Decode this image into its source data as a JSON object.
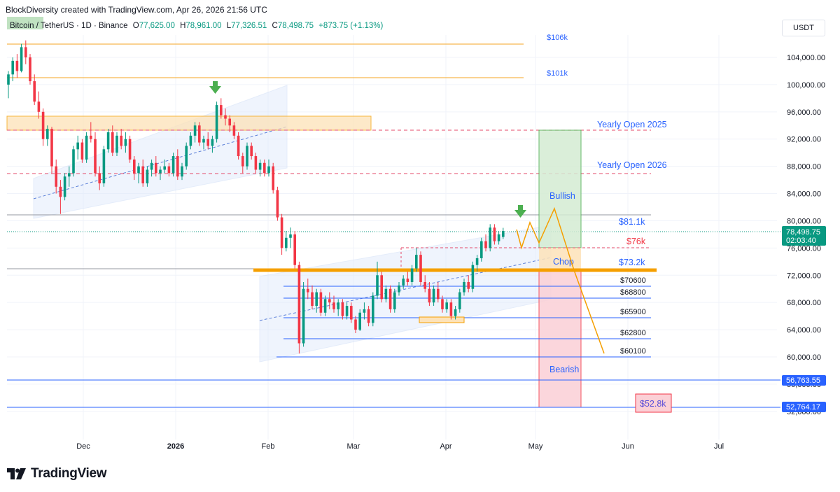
{
  "header": {
    "credit": "BlockDiversity created with TradingView.com, Apr 26, 2026 21:56 UTC",
    "symbol": "Bitcoin / TetherUS · 1D · Binance",
    "open_label": "O",
    "open": "77,625.00",
    "high_label": "H",
    "high": "78,961.00",
    "low_label": "L",
    "low": "77,326.51",
    "close_label": "C",
    "close": "78,498.75",
    "change": "+873.75 (+1.13%)",
    "currency": "USDT"
  },
  "footer": {
    "brand": "TradingView",
    "logo_icon": "tradingview-logo-icon"
  },
  "colors": {
    "up": "#089981",
    "down": "#f23645",
    "orange": "#f59f00",
    "blue": "#2962ff",
    "level_red": "#f23645",
    "text_blue": "#2962ff"
  },
  "chart_data": {
    "type": "candlestick",
    "x_ticks": [
      "Dec",
      "2026",
      "Feb",
      "Mar",
      "Apr",
      "May",
      "Jun",
      "Jul"
    ],
    "y_ticks": [
      "104,000.00",
      "100,000.00",
      "96,000.00",
      "92,000.00",
      "88,000.00",
      "84,000.00",
      "80,000.00",
      "76,000.00",
      "72,000.00",
      "68,000.00",
      "64,000.00",
      "60,000.00",
      "56,000.00",
      "52,000.00"
    ],
    "ylim": [
      48800,
      106600
    ],
    "last_price": {
      "value": "78,498.75",
      "countdown": "02:03:40"
    },
    "price_badges": [
      "56,763.55",
      "52,764.17"
    ],
    "annotations": {
      "top_labels": [
        "$106k",
        "$101k"
      ],
      "yearly_open_2025": "Yearly Open 2025",
      "yearly_open_2026": "Yearly Open 2026",
      "bullish": "Bullish",
      "chop": "Chop",
      "bearish": "Bearish",
      "level_81k": "$81.1k",
      "level_76k": "$76k",
      "level_73k": "$73.2k",
      "support_levels": [
        "$70600",
        "$68800",
        "$65900",
        "$62800",
        "$60100"
      ],
      "target_bear": "$52.8k"
    },
    "levels": [
      {
        "label": "$106k",
        "value": 106000
      },
      {
        "label": "$101k",
        "value": 101000
      },
      {
        "label": "Yearly Open 2025",
        "value": 93500
      },
      {
        "label": "Yearly Open 2026",
        "value": 87500
      },
      {
        "label": "$81.1k",
        "value": 81100
      },
      {
        "label": "$76k",
        "value": 76000
      },
      {
        "label": "$73.2k",
        "value": 73200
      },
      {
        "label": "$70600",
        "value": 70600
      },
      {
        "label": "$68800",
        "value": 68800
      },
      {
        "label": "$65900",
        "value": 65900
      },
      {
        "label": "$62800",
        "value": 62800
      },
      {
        "label": "$60100",
        "value": 60100
      },
      {
        "label": "56,763.55",
        "value": 56763.55
      },
      {
        "label": "52,764.17",
        "value": 52764.17
      }
    ],
    "candles": [
      [
        100000,
        102000,
        98000,
        101500
      ],
      [
        101500,
        104000,
        100500,
        103500
      ],
      [
        103500,
        104500,
        101000,
        102000
      ],
      [
        102000,
        106000,
        101800,
        105500
      ],
      [
        105500,
        106500,
        103000,
        104000
      ],
      [
        104000,
        104500,
        100000,
        100500
      ],
      [
        100500,
        101500,
        97000,
        97500
      ],
      [
        97500,
        99000,
        95000,
        96000
      ],
      [
        96000,
        96500,
        91000,
        92000
      ],
      [
        92000,
        94000,
        91000,
        93500
      ],
      [
        93500,
        93800,
        87000,
        88000
      ],
      [
        88000,
        89000,
        84000,
        85000
      ],
      [
        85000,
        86000,
        81000,
        83500
      ],
      [
        83500,
        87000,
        83000,
        86500
      ],
      [
        86500,
        88000,
        85000,
        87000
      ],
      [
        87000,
        91000,
        86500,
        90500
      ],
      [
        90500,
        92500,
        89000,
        91500
      ],
      [
        91500,
        92000,
        88500,
        89000
      ],
      [
        89000,
        93000,
        88500,
        92500
      ],
      [
        92500,
        94500,
        91500,
        92000
      ],
      [
        92000,
        93000,
        86500,
        87000
      ],
      [
        87000,
        88000,
        84500,
        85500
      ],
      [
        85500,
        91000,
        85000,
        90500
      ],
      [
        90500,
        93500,
        90000,
        93000
      ],
      [
        93000,
        94000,
        89500,
        90000
      ],
      [
        90000,
        93000,
        89500,
        92500
      ],
      [
        92500,
        93500,
        90500,
        91000
      ],
      [
        91000,
        93000,
        90000,
        92000
      ],
      [
        92000,
        92500,
        88500,
        89000
      ],
      [
        89000,
        89500,
        86000,
        87000
      ],
      [
        87000,
        88500,
        85500,
        88000
      ],
      [
        88000,
        89000,
        85000,
        85500
      ],
      [
        85500,
        88000,
        85000,
        87500
      ],
      [
        87500,
        89000,
        86500,
        88500
      ],
      [
        88500,
        89500,
        86500,
        87000
      ],
      [
        87000,
        88000,
        86000,
        87500
      ],
      [
        87500,
        89000,
        87000,
        88000
      ],
      [
        88000,
        88500,
        86500,
        87000
      ],
      [
        87000,
        90000,
        86500,
        89500
      ],
      [
        89500,
        90500,
        86000,
        86500
      ],
      [
        86500,
        88500,
        86000,
        88000
      ],
      [
        88000,
        91500,
        87500,
        91000
      ],
      [
        91000,
        93000,
        90500,
        92500
      ],
      [
        92500,
        94500,
        91500,
        94000
      ],
      [
        94000,
        94500,
        91000,
        91500
      ],
      [
        91500,
        92500,
        90500,
        92000
      ],
      [
        92000,
        93000,
        90500,
        91000
      ],
      [
        91000,
        92500,
        90000,
        92000
      ],
      [
        92000,
        97500,
        91500,
        97000
      ],
      [
        97000,
        98000,
        95000,
        95500
      ],
      [
        95500,
        96500,
        94000,
        95000
      ],
      [
        95000,
        95500,
        93000,
        94000
      ],
      [
        94000,
        94500,
        92000,
        92500
      ],
      [
        92500,
        93000,
        89000,
        89500
      ],
      [
        89500,
        90000,
        87000,
        88000
      ],
      [
        88000,
        91500,
        87500,
        91000
      ],
      [
        91000,
        91500,
        89000,
        89500
      ],
      [
        89500,
        90000,
        87000,
        87500
      ],
      [
        87500,
        89000,
        86500,
        88500
      ],
      [
        88500,
        89000,
        86500,
        87000
      ],
      [
        87000,
        89000,
        86500,
        88000
      ],
      [
        88000,
        88500,
        84000,
        84500
      ],
      [
        84500,
        85000,
        80000,
        80500
      ],
      [
        80500,
        81000,
        75000,
        76000
      ],
      [
        76000,
        78500,
        75500,
        77500
      ],
      [
        77500,
        79000,
        76000,
        78000
      ],
      [
        78000,
        78500,
        73000,
        73500
      ],
      [
        73500,
        74000,
        60500,
        62000
      ],
      [
        62000,
        71000,
        61500,
        70000
      ],
      [
        70000,
        71500,
        68500,
        69500
      ],
      [
        69500,
        70500,
        67000,
        67500
      ],
      [
        67500,
        70000,
        66500,
        69500
      ],
      [
        69500,
        70000,
        66000,
        66500
      ],
      [
        66500,
        69000,
        66000,
        68500
      ],
      [
        68500,
        69500,
        67000,
        68000
      ],
      [
        68000,
        69000,
        66500,
        67000
      ],
      [
        67000,
        68500,
        66000,
        68000
      ],
      [
        68000,
        68500,
        65500,
        66000
      ],
      [
        66000,
        68000,
        65500,
        67500
      ],
      [
        67500,
        68000,
        65000,
        65500
      ],
      [
        65500,
        66000,
        63500,
        64000
      ],
      [
        64000,
        67000,
        63800,
        66500
      ],
      [
        66500,
        68000,
        65500,
        67000
      ],
      [
        67000,
        67500,
        64500,
        65000
      ],
      [
        65000,
        69500,
        64500,
        69000
      ],
      [
        69000,
        74000,
        68500,
        72000
      ],
      [
        72000,
        72500,
        68000,
        68500
      ],
      [
        68500,
        70500,
        68000,
        70000
      ],
      [
        70000,
        70500,
        66500,
        67000
      ],
      [
        67000,
        70000,
        66500,
        69500
      ],
      [
        69500,
        71000,
        69000,
        70500
      ],
      [
        70500,
        72000,
        70000,
        71500
      ],
      [
        71500,
        72500,
        70500,
        71000
      ],
      [
        71000,
        73500,
        70500,
        73000
      ],
      [
        73000,
        76000,
        72500,
        75000
      ],
      [
        75000,
        75500,
        70500,
        71000
      ],
      [
        71000,
        72000,
        69500,
        70000
      ],
      [
        70000,
        71000,
        67500,
        68000
      ],
      [
        68000,
        70500,
        67500,
        70000
      ],
      [
        70000,
        71000,
        68000,
        68500
      ],
      [
        68500,
        69000,
        66500,
        67000
      ],
      [
        67000,
        68500,
        66500,
        68000
      ],
      [
        68000,
        68500,
        65500,
        66000
      ],
      [
        66000,
        67500,
        65500,
        67000
      ],
      [
        67000,
        70000,
        66500,
        69500
      ],
      [
        69500,
        71500,
        69000,
        71000
      ],
      [
        71000,
        72000,
        69500,
        70000
      ],
      [
        70000,
        74000,
        69500,
        73500
      ],
      [
        73500,
        75000,
        72500,
        74500
      ],
      [
        74500,
        77500,
        74000,
        77000
      ],
      [
        77000,
        78000,
        75500,
        76000
      ],
      [
        76000,
        79500,
        75500,
        79000
      ],
      [
        79000,
        79500,
        76500,
        77000
      ],
      [
        77000,
        78500,
        76500,
        78000
      ],
      [
        77625,
        78961,
        77326.51,
        78498.75
      ]
    ]
  }
}
